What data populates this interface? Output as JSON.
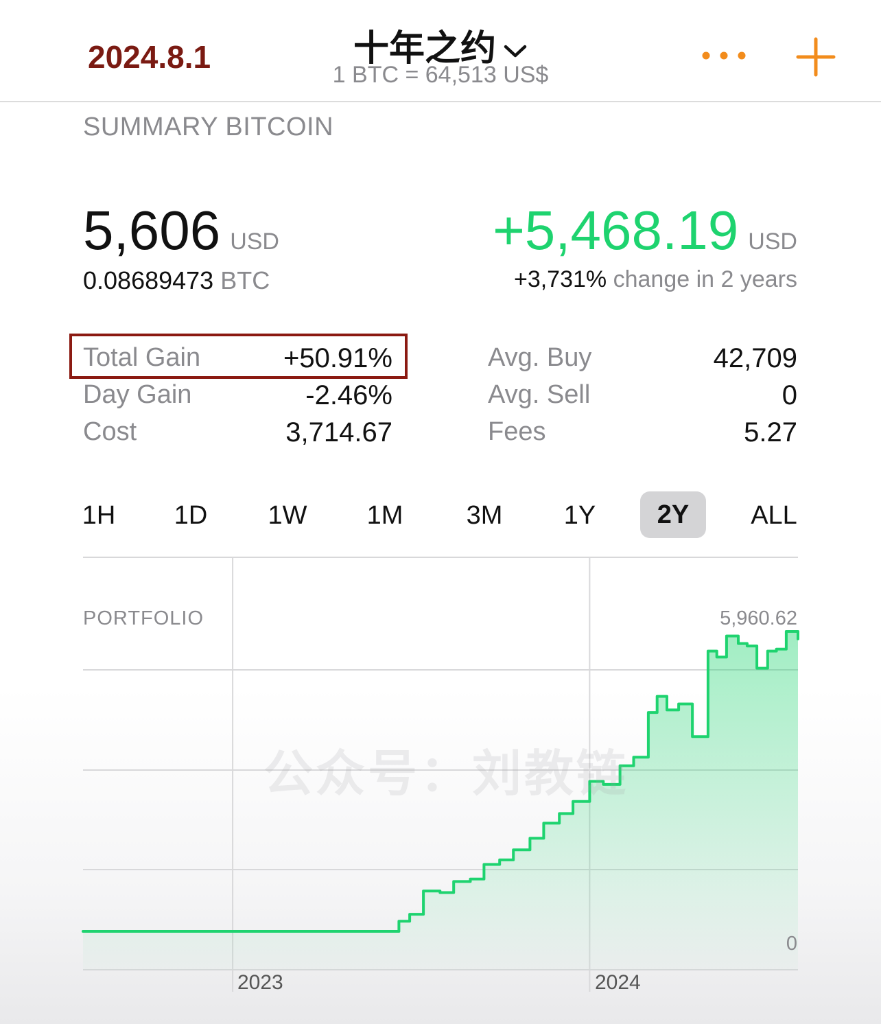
{
  "header": {
    "date": "2024.8.1",
    "title": "十年之约",
    "rate": "1 BTC = 64,513 US$",
    "more_icon": "more-dots-icon",
    "add_icon": "plus-icon",
    "accent_color": "#f28c1c"
  },
  "summary": {
    "section_title": "SUMMARY BITCOIN",
    "value": "5,606",
    "value_unit": "USD",
    "btc_amount": "0.08689473",
    "btc_unit": "BTC",
    "gain": "+5,468.19",
    "gain_unit": "USD",
    "change_pct": "+3,731%",
    "change_text": "change in 2 years"
  },
  "stats": {
    "left": [
      {
        "label": "Total Gain",
        "value": "+50.91%"
      },
      {
        "label": "Day Gain",
        "value": "-2.46%"
      },
      {
        "label": "Cost",
        "value": "3,714.67"
      }
    ],
    "right": [
      {
        "label": "Avg. Buy",
        "value": "42,709"
      },
      {
        "label": "Avg. Sell",
        "value": "0"
      },
      {
        "label": "Fees",
        "value": "5.27"
      }
    ]
  },
  "ranges": {
    "items": [
      "1H",
      "1D",
      "1W",
      "1M",
      "3M",
      "1Y",
      "2Y",
      "ALL"
    ],
    "active": "2Y"
  },
  "watermark": "公众号：刘教链",
  "chart_data": {
    "type": "area",
    "label": "PORTFOLIO",
    "max_label": "5,960.62",
    "min_label": "0",
    "x_tick_labels": [
      "2023",
      "2024"
    ],
    "ylim": [
      0,
      5960.62
    ],
    "line_color": "#1ed36f",
    "x_domain": [
      "2022-08",
      "2024-08"
    ],
    "series": [
      {
        "x": [
          "2022-08",
          "2022-10",
          "2022-12",
          "2023-01",
          "2023-03",
          "2023-05",
          "2023-06",
          "2023-06-20",
          "2023-07",
          "2023-07-15",
          "2023-08",
          "2023-08-15",
          "2023-09",
          "2023-09-15",
          "2023-10",
          "2023-10-15",
          "2023-11",
          "2023-11-15",
          "2023-12",
          "2023-12-15",
          "2024-01",
          "2024-01-15",
          "2024-02",
          "2024-02-15",
          "2024-03",
          "2024-03-10",
          "2024-03-20",
          "2024-04",
          "2024-04-15",
          "2024-05",
          "2024-05-10",
          "2024-05-20",
          "2024-06",
          "2024-06-10",
          "2024-06-20",
          "2024-07",
          "2024-07-10",
          "2024-07-20",
          "2024-08"
        ],
        "y": [
          0,
          0,
          0,
          0,
          0,
          0,
          0,
          200,
          340,
          800,
          770,
          990,
          1040,
          1330,
          1420,
          1620,
          1850,
          2150,
          2340,
          2580,
          2980,
          2920,
          3290,
          3460,
          4350,
          4670,
          4400,
          4520,
          3870,
          5570,
          5450,
          5870,
          5720,
          5670,
          5230,
          5570,
          5610,
          5960,
          5810
        ]
      }
    ]
  }
}
